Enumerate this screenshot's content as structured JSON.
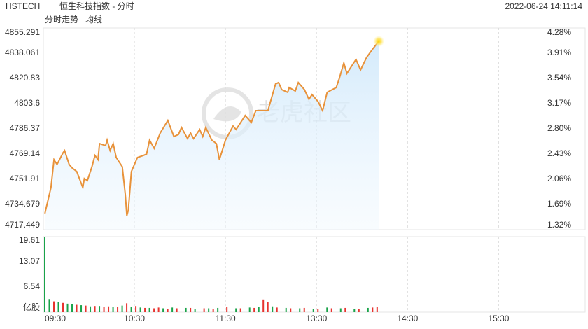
{
  "header": {
    "symbol": "HSTECH",
    "name": "恒生科技指数 - 分时",
    "timestamp": "2022-06-24 14:11:14"
  },
  "chart_data": [
    {
      "type": "line",
      "legend": [
        {
          "name": "分时走势",
          "color": "#4a90e2"
        },
        {
          "name": "均线",
          "color": "#f0a030"
        }
      ],
      "watermark": "老虎社区",
      "series": [
        {
          "color": "#e8923a",
          "x": [
            1,
            5,
            7,
            9,
            13,
            14,
            17,
            19,
            22,
            26,
            27,
            29,
            32,
            34,
            36,
            37,
            41,
            42,
            44,
            46,
            48,
            52,
            54,
            55,
            56,
            58,
            62,
            66,
            68,
            70,
            73,
            77,
            82,
            86,
            89,
            91,
            95,
            97,
            99,
            103,
            105,
            107,
            111,
            114,
            116,
            120,
            125,
            127,
            133,
            137,
            140,
            144,
            148,
            149,
            153,
            155,
            157,
            161,
            162,
            166,
            168,
            172,
            175,
            177,
            181,
            184,
            187,
            193,
            195,
            198,
            200,
            206,
            209,
            213,
            217,
            221
          ],
          "values": [
            4728.5,
            4746.2,
            4765.3,
            4762.0,
            4770.1,
            4771.5,
            4762.0,
            4759.6,
            4757.2,
            4746.2,
            4752.4,
            4751.0,
            4760.5,
            4768.2,
            4765.3,
            4776.3,
            4774.9,
            4778.7,
            4771.5,
            4776.3,
            4766.8,
            4760.5,
            4741.4,
            4727.0,
            4730.9,
            4757.2,
            4766.8,
            4768.2,
            4769.1,
            4778.7,
            4773.0,
            4783.5,
            4792.1,
            4781.1,
            4782.5,
            4787.3,
            4779.7,
            4783.5,
            4779.7,
            4785.9,
            4781.1,
            4787.3,
            4778.7,
            4776.3,
            4765.3,
            4778.7,
            4788.3,
            4785.9,
            4795.5,
            4790.7,
            4798.8,
            4798.8,
            4798.8,
            4802.6,
            4817.0,
            4818.0,
            4813.2,
            4811.3,
            4814.6,
            4812.2,
            4818.0,
            4813.2,
            4806.5,
            4809.8,
            4805.0,
            4798.8,
            4811.3,
            4814.6,
            4820.8,
            4831.4,
            4824.2,
            4833.8,
            4826.6,
            4835.2,
            4840.9,
            4846.2
          ]
        }
      ],
      "xlim": [
        0,
        357
      ],
      "ylim": [
        4717.449,
        4855.291
      ],
      "yticks": [
        4717.449,
        4734.679,
        4751.91,
        4769.14,
        4786.37,
        4803.6,
        4820.83,
        4838.061,
        4855.291
      ],
      "y2lim": [
        1.32,
        4.28
      ],
      "y2ticks": [
        {
          "value": 1.32,
          "label": "1.32%"
        },
        {
          "value": 1.69,
          "label": "1.69%"
        },
        {
          "value": 2.06,
          "label": "2.06%"
        },
        {
          "value": 2.43,
          "label": "2.43%"
        },
        {
          "value": 2.8,
          "label": "2.80%"
        },
        {
          "value": 3.17,
          "label": "3.17%"
        },
        {
          "value": 3.54,
          "label": "3.54%"
        },
        {
          "value": 3.91,
          "label": "3.91%"
        },
        {
          "value": 4.28,
          "label": "4.28%"
        }
      ]
    },
    {
      "type": "bar",
      "unit_label": "亿股",
      "series": [
        {
          "color": "#1aa34a",
          "x": [
            0,
            3,
            9,
            15,
            18,
            24,
            30,
            36,
            45,
            51,
            57,
            63,
            69,
            78,
            84,
            93,
            99,
            108,
            114,
            126,
            135,
            141,
            150,
            159,
            168,
            177,
            186,
            195,
            204,
            213
          ],
          "values": [
            19.61,
            3.4,
            2.6,
            2.2,
            2.0,
            1.8,
            1.5,
            1.6,
            1.4,
            1.7,
            1.3,
            1.2,
            1.1,
            1.0,
            1.2,
            1.1,
            0.9,
            1.0,
            1.1,
            1.0,
            1.2,
            1.3,
            1.5,
            1.1,
            1.0,
            0.9,
            1.2,
            1.0,
            0.9,
            1.1
          ]
        },
        {
          "color": "#e8322e",
          "x": [
            6,
            12,
            21,
            27,
            33,
            39,
            42,
            48,
            54,
            60,
            66,
            72,
            75,
            81,
            87,
            96,
            105,
            111,
            120,
            129,
            138,
            144,
            147,
            153,
            162,
            171,
            180,
            189,
            198,
            207,
            216,
            219
          ],
          "values": [
            2.8,
            2.4,
            1.9,
            1.7,
            1.6,
            1.3,
            1.5,
            1.4,
            2.3,
            1.6,
            1.1,
            1.0,
            1.2,
            0.9,
            1.0,
            1.1,
            1.0,
            0.9,
            1.3,
            1.0,
            1.1,
            3.3,
            2.6,
            1.2,
            1.0,
            1.1,
            0.9,
            1.0,
            1.1,
            0.9,
            1.2,
            1.4
          ]
        }
      ],
      "xlim": [
        0,
        357
      ],
      "xticks": [
        {
          "value": 0,
          "label": "09:30"
        },
        {
          "value": 60,
          "label": "10:30"
        },
        {
          "value": 120,
          "label": "11:30"
        },
        {
          "value": 180,
          "label": "13:30"
        },
        {
          "value": 240,
          "label": "14:30"
        },
        {
          "value": 300,
          "label": "15:30"
        }
      ],
      "ylim": [
        0,
        19.61
      ],
      "yticks": [
        6.54,
        13.07,
        19.61
      ]
    }
  ]
}
